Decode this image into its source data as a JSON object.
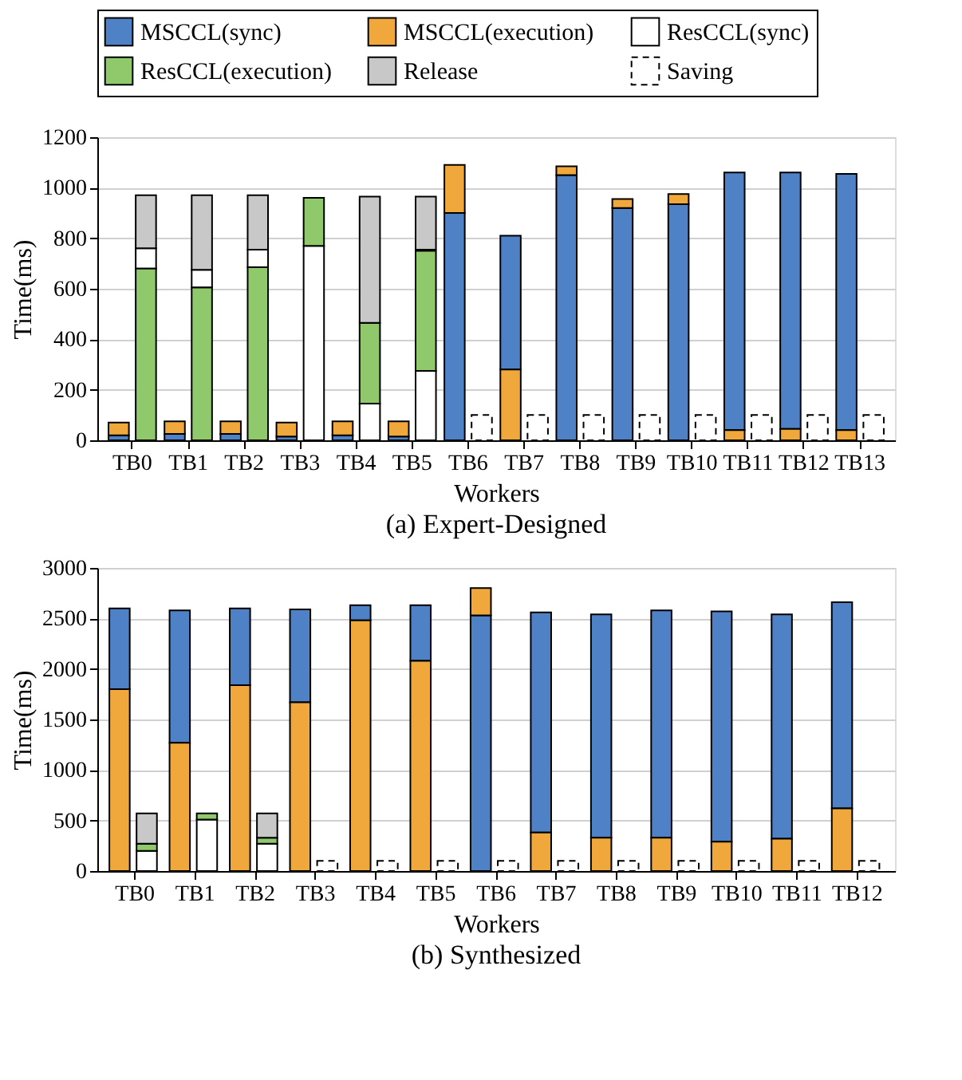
{
  "chart_data": [
    {
      "type": "bar",
      "xlabel": "Workers",
      "ylabel": "Time(ms)",
      "annotations": [
        "(a) Expert-Designed"
      ],
      "categories": [
        "TB0",
        "TB1",
        "TB2",
        "TB3",
        "TB4",
        "TB5",
        "TB6",
        "TB7",
        "TB8",
        "TB9",
        "TB10",
        "TB11",
        "TB12",
        "TB13"
      ],
      "ylim": [
        0,
        1200
      ],
      "yticks": [
        0,
        200,
        400,
        600,
        800,
        1000,
        1200
      ],
      "grid": "y",
      "legend": "top",
      "series": [
        {
          "name": "MSCCL(sync)",
          "color": "#4f81c7",
          "values": [
            20,
            25,
            25,
            15,
            20,
            15,
            900,
            530,
            1050,
            920,
            935,
            1020,
            1015,
            1015
          ],
          "base": [
            0,
            0,
            0,
            0,
            0,
            0,
            0,
            280,
            0,
            0,
            0,
            40,
            45,
            40
          ]
        },
        {
          "name": "MSCCL(execution)",
          "color": "#f0a83c",
          "values": [
            50,
            50,
            50,
            55,
            55,
            60,
            190,
            280,
            35,
            35,
            40,
            40,
            45,
            40
          ],
          "base": [
            20,
            25,
            25,
            15,
            20,
            15,
            900,
            0,
            1050,
            920,
            935,
            0,
            0,
            0
          ]
        },
        {
          "name": "ResCCL(sync)",
          "color": "#ffffff",
          "values": [
            80,
            70,
            70,
            770,
            145,
            275,
            null,
            null,
            null,
            null,
            null,
            null,
            null,
            null
          ],
          "base": [
            680,
            605,
            685,
            0,
            0,
            0,
            null,
            null,
            null,
            null,
            null,
            null,
            null,
            null
          ]
        },
        {
          "name": "ResCCL(execution)",
          "color": "#8fc96b",
          "values": [
            680,
            605,
            685,
            190,
            320,
            475,
            null,
            null,
            null,
            null,
            null,
            null,
            null,
            null
          ],
          "base": [
            0,
            0,
            0,
            770,
            145,
            275,
            null,
            null,
            null,
            null,
            null,
            null,
            null,
            null
          ]
        },
        {
          "name": "Release",
          "color": "#c8c8c8",
          "values": [
            210,
            295,
            215,
            null,
            500,
            210,
            null,
            null,
            null,
            null,
            null,
            null,
            null,
            null
          ],
          "base": [
            760,
            675,
            755,
            null,
            465,
            755,
            null,
            null,
            null,
            null,
            null,
            null,
            null,
            null
          ]
        },
        {
          "name": "Saving",
          "color": "#ffffff",
          "line_style": "dashed",
          "values": [
            null,
            null,
            null,
            null,
            null,
            null,
            100,
            100,
            100,
            100,
            100,
            100,
            100,
            100
          ],
          "base": [
            null,
            null,
            null,
            null,
            null,
            null,
            0,
            0,
            0,
            0,
            0,
            0,
            0,
            0
          ]
        }
      ]
    },
    {
      "type": "bar",
      "xlabel": "Workers",
      "ylabel": "Time(ms)",
      "annotations": [
        "(b) Synthesized"
      ],
      "categories": [
        "TB0",
        "TB1",
        "TB2",
        "TB3",
        "TB4",
        "TB5",
        "TB6",
        "TB7",
        "TB8",
        "TB9",
        "TB10",
        "TB11",
        "TB12"
      ],
      "ylim": [
        0,
        3000
      ],
      "yticks": [
        0,
        500,
        1000,
        1500,
        2000,
        2500,
        3000
      ],
      "grid": "y",
      "legend": "top",
      "series": [
        {
          "name": "MSCCL(sync)",
          "color": "#4f81c7",
          "values": [
            800,
            1310,
            760,
            920,
            150,
            550,
            2530,
            2180,
            2210,
            2250,
            2280,
            2220,
            2040
          ],
          "base": [
            1800,
            1270,
            1840,
            1670,
            2480,
            2080,
            0,
            380,
            330,
            330,
            290,
            320,
            620
          ]
        },
        {
          "name": "MSCCL(execution)",
          "color": "#f0a83c",
          "values": [
            1800,
            1270,
            1840,
            1670,
            2480,
            2080,
            270,
            380,
            330,
            330,
            290,
            320,
            620
          ],
          "base": [
            0,
            0,
            0,
            0,
            0,
            0,
            2530,
            0,
            0,
            0,
            0,
            0,
            0
          ]
        },
        {
          "name": "ResCCL(sync)",
          "color": "#ffffff",
          "values": [
            200,
            510,
            270,
            null,
            null,
            null,
            null,
            null,
            null,
            null,
            null,
            null,
            null
          ],
          "base": [
            0,
            0,
            0,
            null,
            null,
            null,
            null,
            null,
            null,
            null,
            null,
            null,
            null
          ]
        },
        {
          "name": "ResCCL(execution)",
          "color": "#8fc96b",
          "values": [
            70,
            60,
            60,
            null,
            null,
            null,
            null,
            null,
            null,
            null,
            null,
            null,
            null
          ],
          "base": [
            200,
            510,
            270,
            null,
            null,
            null,
            null,
            null,
            null,
            null,
            null,
            null,
            null
          ]
        },
        {
          "name": "Release",
          "color": "#c8c8c8",
          "values": [
            300,
            null,
            240,
            null,
            null,
            null,
            null,
            null,
            null,
            null,
            null,
            null,
            null
          ],
          "base": [
            270,
            null,
            330,
            null,
            null,
            null,
            null,
            null,
            null,
            null,
            null,
            null,
            null
          ]
        },
        {
          "name": "Saving",
          "color": "#ffffff",
          "line_style": "dashed",
          "values": [
            null,
            null,
            null,
            100,
            100,
            100,
            100,
            100,
            100,
            100,
            100,
            100,
            100
          ],
          "base": [
            null,
            null,
            null,
            0,
            0,
            0,
            0,
            0,
            0,
            0,
            0,
            0,
            0
          ]
        }
      ]
    }
  ]
}
